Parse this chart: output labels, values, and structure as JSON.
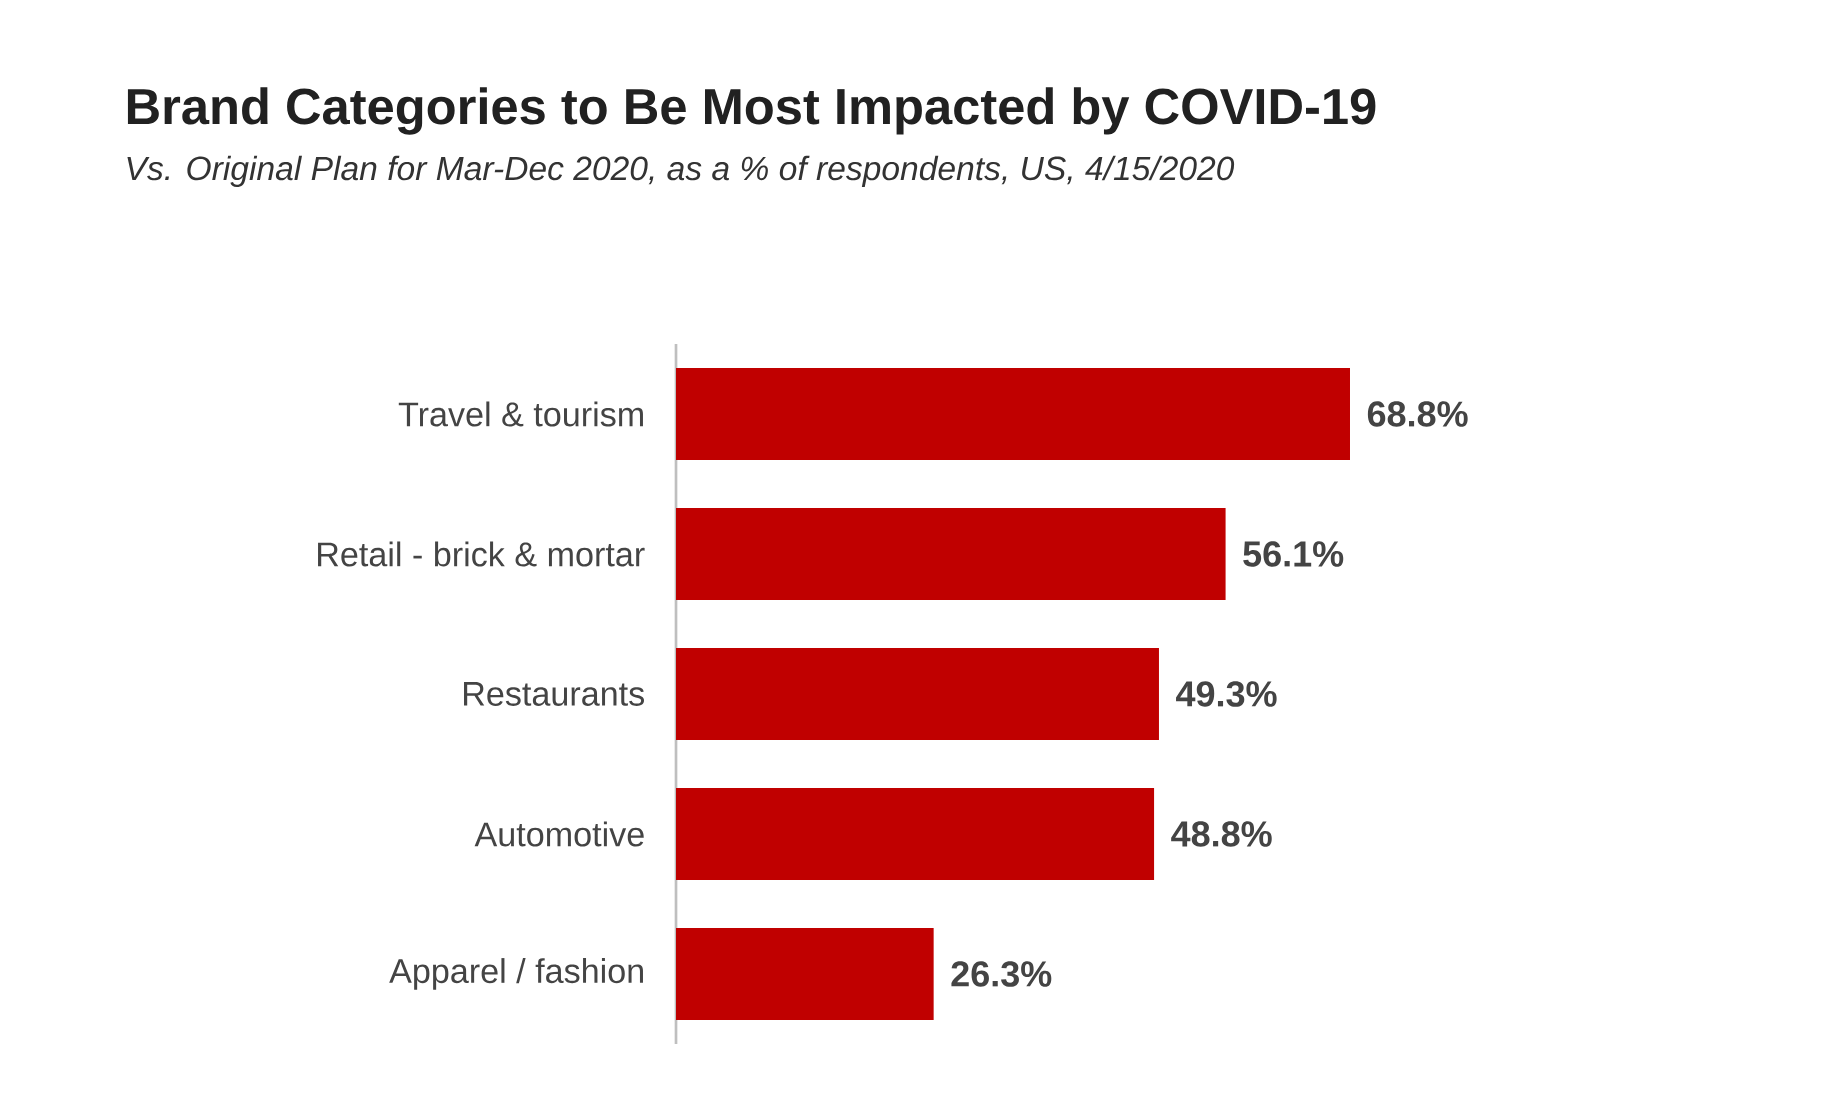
{
  "chart_data": {
    "type": "bar",
    "orientation": "horizontal",
    "title": "Brand Categories to Be Most Impacted by COVID-19",
    "subtitle": "Vs. Original Plan for Mar-Dec 2020, as a % of respondents, US, 4/15/2020",
    "categories": [
      "Travel & tourism",
      "Retail - brick & mortar",
      "Restaurants",
      "Automotive",
      "Apparel / fashion"
    ],
    "values": [
      68.8,
      56.1,
      49.3,
      48.8,
      26.3
    ],
    "value_labels": [
      "68.8%",
      "56.1%",
      "49.3%",
      "48.8%",
      "26.3%"
    ],
    "color": "#c00000"
  }
}
